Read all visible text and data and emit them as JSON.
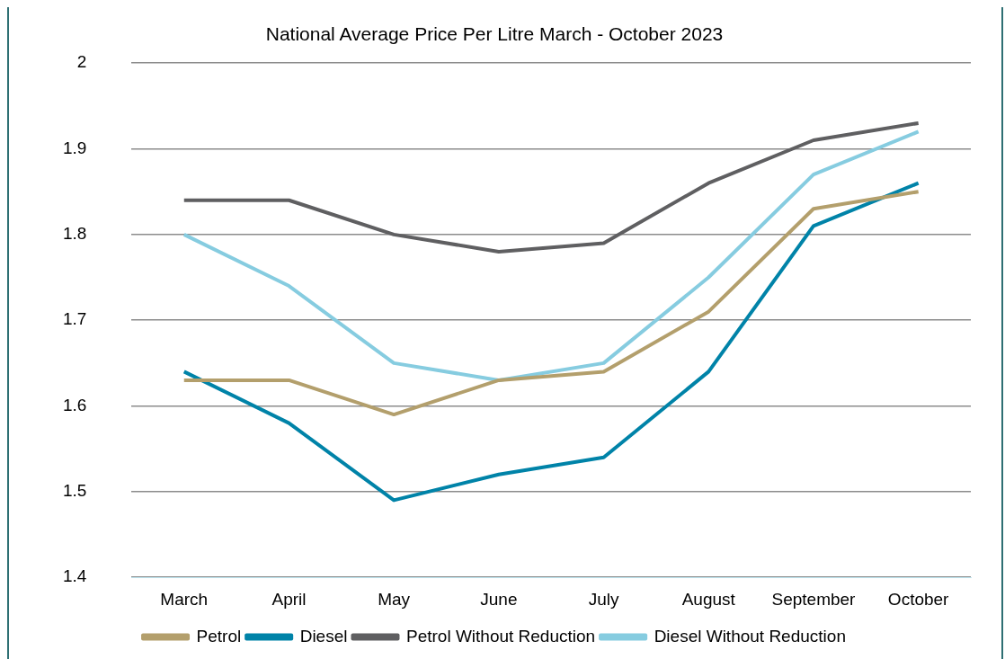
{
  "chart_data": {
    "type": "line",
    "title": "National Average Price Per Litre March - October 2023",
    "categories": [
      "March",
      "April",
      "May",
      "June",
      "July",
      "August",
      "September",
      "October"
    ],
    "series": [
      {
        "name": "Petrol",
        "color": "#b39f6c",
        "values": [
          1.63,
          1.63,
          1.59,
          1.63,
          1.64,
          1.71,
          1.83,
          1.85
        ]
      },
      {
        "name": "Diesel",
        "color": "#0083a8",
        "values": [
          1.64,
          1.58,
          1.49,
          1.52,
          1.54,
          1.64,
          1.81,
          1.86
        ]
      },
      {
        "name": "Petrol Without Reduction",
        "color": "#5f5f61",
        "values": [
          1.84,
          1.84,
          1.8,
          1.78,
          1.79,
          1.86,
          1.91,
          1.93
        ]
      },
      {
        "name": "Diesel Without Reduction",
        "color": "#86cce0",
        "values": [
          1.8,
          1.74,
          1.65,
          1.63,
          1.65,
          1.75,
          1.87,
          1.92
        ]
      }
    ],
    "ylim": [
      1.4,
      2
    ],
    "yticks": [
      1.4,
      1.5,
      1.6,
      1.7,
      1.8,
      1.9,
      2
    ],
    "grid": "y",
    "legend": "bottom",
    "marker": "none",
    "line_style": "solid"
  }
}
